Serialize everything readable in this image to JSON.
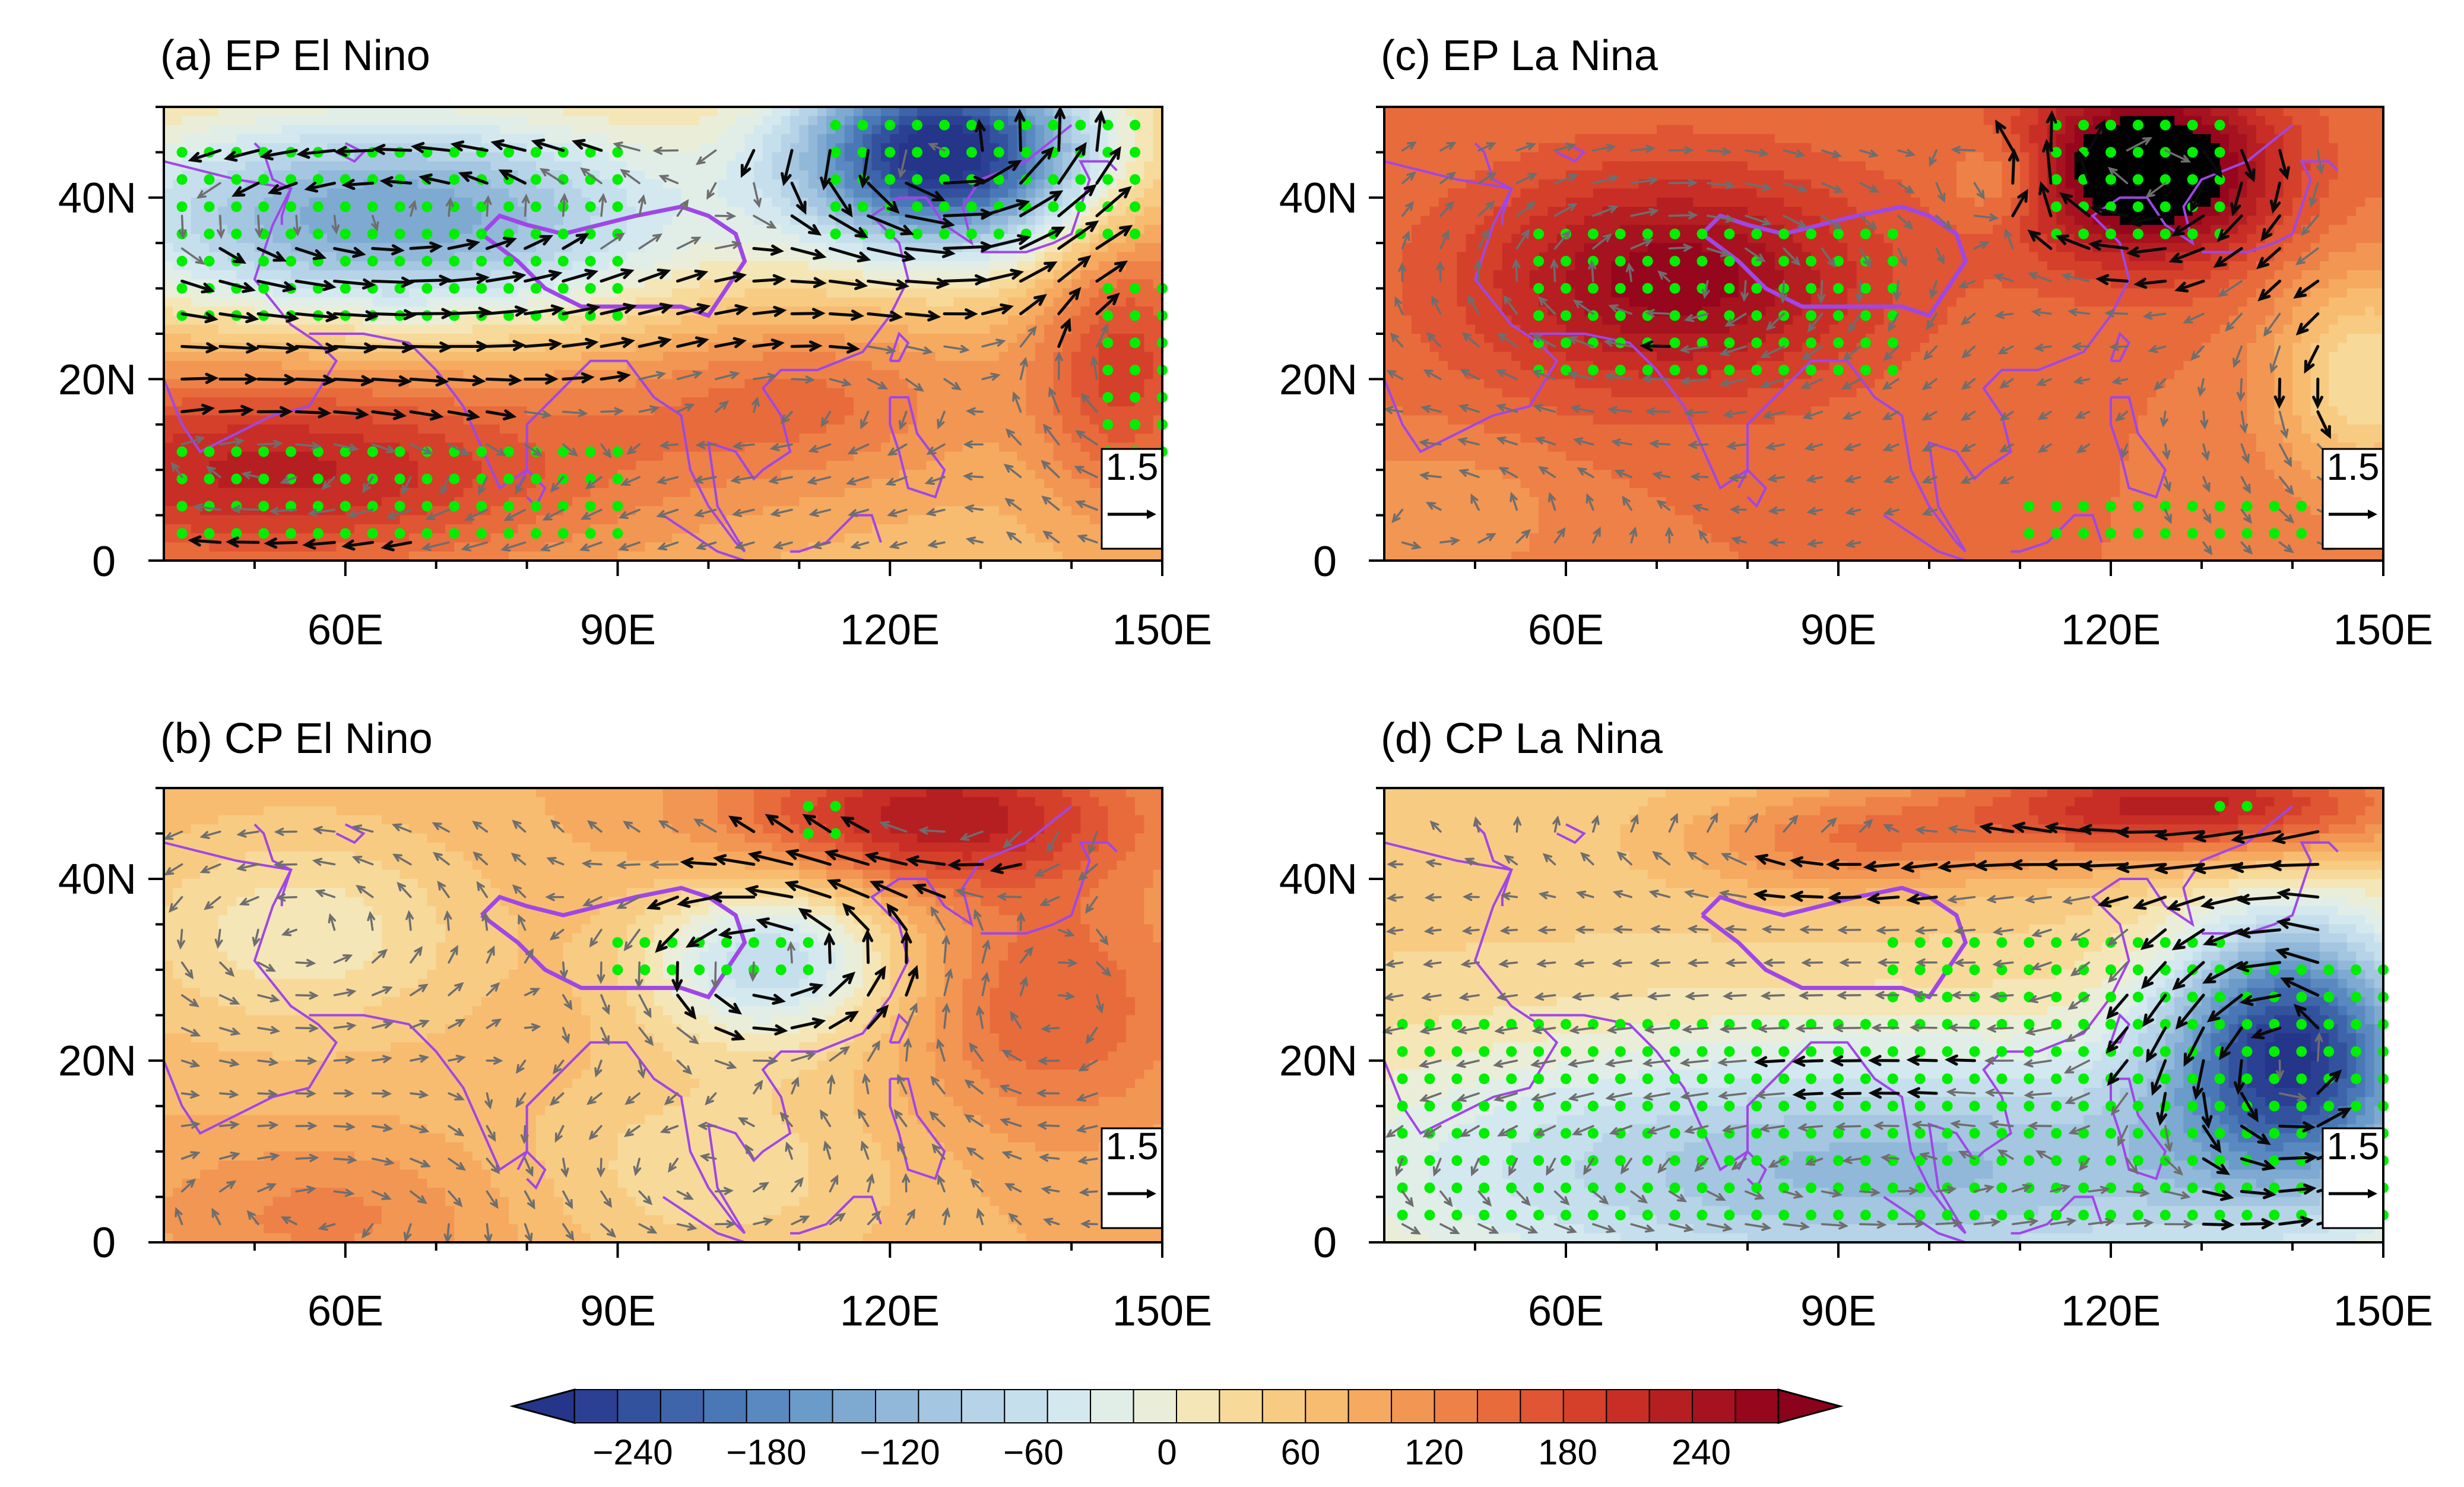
{
  "panels": [
    {
      "title": "(a) EP El Nino",
      "base": -10,
      "blobs": [
        {
          "lon": 65,
          "lat": 38,
          "rlon": 34,
          "rlat": 12,
          "amp": -170
        },
        {
          "lon": 126,
          "lat": 45,
          "rlon": 17,
          "rlat": 11,
          "amp": -275
        },
        {
          "lon": 52,
          "lat": 10,
          "rlon": 38,
          "rlat": 12,
          "amp": 120
        },
        {
          "lon": 110,
          "lat": 18,
          "rlon": 22,
          "rlat": 10,
          "amp": 55
        },
        {
          "lon": 146,
          "lat": 22,
          "rlon": 10,
          "rlat": 16,
          "amp": 90
        }
      ],
      "stipple": [
        {
          "lon0": 42,
          "lon1": 92,
          "lat0": 26,
          "lat1": 46
        },
        {
          "lon0": 114,
          "lon1": 148,
          "lat0": 36,
          "lat1": 48
        },
        {
          "lon0": 40,
          "lon1": 92,
          "lat0": 1,
          "lat1": 14
        },
        {
          "lon0": 144,
          "lon1": 150,
          "lat0": 12,
          "lat1": 30
        }
      ],
      "vector_ref": "1.5"
    },
    {
      "title": "(b) CP El Nino",
      "base": 0,
      "blobs": [
        {
          "lon": 107,
          "lat": 31,
          "rlon": 14,
          "rlat": 9,
          "amp": -120
        },
        {
          "lon": 55,
          "lat": 34,
          "rlon": 20,
          "rlat": 12,
          "amp": -55
        },
        {
          "lon": 100,
          "lat": 8,
          "rlon": 22,
          "rlat": 12,
          "amp": -40
        },
        {
          "lon": 125,
          "lat": 47,
          "rlon": 22,
          "rlat": 8,
          "amp": 115
        },
        {
          "lon": 138,
          "lat": 26,
          "rlon": 16,
          "rlat": 14,
          "amp": 60
        },
        {
          "lon": 58,
          "lat": 3,
          "rlon": 20,
          "rlat": 8,
          "amp": 35
        }
      ],
      "stipple": [
        {
          "lon0": 90,
          "lon1": 112,
          "lat0": 29,
          "lat1": 33
        },
        {
          "lon0": 110,
          "lon1": 116,
          "lat0": 45,
          "lat1": 49
        }
      ],
      "vector_ref": "1.5"
    },
    {
      "title": "(c) EP La Nina",
      "base": 45,
      "blobs": [
        {
          "lon": 72,
          "lat": 31,
          "rlon": 22,
          "rlat": 12,
          "amp": 100
        },
        {
          "lon": 124,
          "lat": 43,
          "rlon": 14,
          "rlat": 10,
          "amp": 150
        },
        {
          "lon": 148,
          "lat": 20,
          "rlon": 10,
          "rlat": 12,
          "amp": -90
        },
        {
          "lon": 108,
          "lat": 42,
          "rlon": 6,
          "rlat": 5,
          "amp": -45
        },
        {
          "lon": 45,
          "lat": 5,
          "rlon": 15,
          "rlat": 8,
          "amp": -30
        }
      ],
      "stipple": [
        {
          "lon0": 56,
          "lon1": 96,
          "lat0": 20,
          "lat1": 36
        },
        {
          "lon0": 112,
          "lon1": 134,
          "lat0": 36,
          "lat1": 48
        },
        {
          "lon0": 110,
          "lon1": 148,
          "lat0": 1,
          "lat1": 8
        }
      ],
      "vector_ref": "1.5"
    },
    {
      "title": "(d) CP La Nina",
      "base": -25,
      "blobs": [
        {
          "lon": 140,
          "lat": 22,
          "rlon": 14,
          "rlat": 14,
          "amp": -220
        },
        {
          "lon": 95,
          "lat": 8,
          "rlon": 60,
          "rlat": 15,
          "amp": -130
        },
        {
          "lon": 128,
          "lat": 48,
          "rlon": 26,
          "rlat": 6,
          "amp": 140
        },
        {
          "lon": 90,
          "lat": 44,
          "rlon": 18,
          "rlat": 6,
          "amp": 60
        }
      ],
      "stipple": [
        {
          "lon0": 42,
          "lon1": 150,
          "lat0": 2,
          "lat1": 26
        },
        {
          "lon0": 96,
          "lon1": 132,
          "lat0": 26,
          "lat1": 34
        },
        {
          "lon0": 126,
          "lon1": 150,
          "lat0": 26,
          "lat1": 32
        },
        {
          "lon0": 132,
          "lon1": 136,
          "lat0": 46,
          "lat1": 49
        }
      ],
      "vector_ref": "1.5"
    }
  ],
  "axes": {
    "x_ticks": [
      "60E",
      "90E",
      "120E",
      "150E"
    ],
    "x_tick_values": [
      60,
      90,
      120,
      150
    ],
    "y_ticks": [
      "0",
      "20N",
      "40N"
    ],
    "y_tick_values": [
      0,
      20,
      40
    ],
    "lon_range": [
      40,
      150
    ],
    "lat_range": [
      0,
      50
    ]
  },
  "colorbar": {
    "tick_labels": [
      "−240",
      "−180",
      "−120",
      "−60",
      "0",
      "60",
      "120",
      "180",
      "240"
    ],
    "tick_values": [
      -240,
      -180,
      -120,
      -60,
      0,
      60,
      120,
      180,
      240
    ],
    "levels": [
      -270,
      -255,
      -240,
      -225,
      -210,
      -195,
      -180,
      -165,
      -150,
      -135,
      -120,
      -105,
      -90,
      -75,
      -60,
      -45,
      -30,
      -15,
      0,
      15,
      30,
      45,
      60,
      75,
      90,
      105,
      120,
      135,
      150,
      165,
      180,
      195,
      210,
      225,
      240,
      255,
      270
    ],
    "colors": [
      "#2b3f93",
      "#33529e",
      "#3e64aa",
      "#4a77b6",
      "#5989c0",
      "#6a9bc9",
      "#7eaad1",
      "#91b8d9",
      "#a4c6e0",
      "#b6d3e7",
      "#c6dfec",
      "#d4e8ef",
      "#e1eee8",
      "#eaeed8",
      "#f4e6b6",
      "#f7d99a",
      "#f8cb83",
      "#f7bc70",
      "#f5aa60",
      "#f29653",
      "#ee8147",
      "#e86b3c",
      "#e05533",
      "#d5402b",
      "#c82e26",
      "#b61f22",
      "#a6121f",
      "#96061d"
    ],
    "under_color": "#24358a",
    "over_color": "#8a021b"
  },
  "style": {
    "coast_color": "#9f47e6",
    "stipple_color": "#00ee00",
    "vector_sig_color": "#0a0a0a",
    "vector_nonsig_color": "#6e6e6e"
  }
}
